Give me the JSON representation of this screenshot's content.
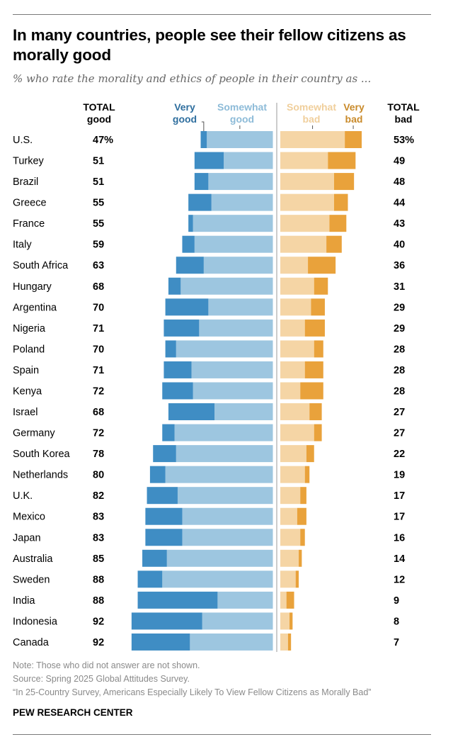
{
  "title": "In many countries, people see their fellow citizens as morally good",
  "subtitle": "% who rate the morality and ethics of people in their country as ...",
  "headers": {
    "total_good": [
      "TOTAL",
      "good"
    ],
    "very_good": [
      "Very",
      "good"
    ],
    "somewhat_good": [
      "Somewhat",
      "good"
    ],
    "somewhat_bad": [
      "Somewhat",
      "bad"
    ],
    "very_bad": [
      "Very",
      "bad"
    ],
    "total_bad": [
      "TOTAL",
      "bad"
    ]
  },
  "colors": {
    "very_good": "#3f8dc4",
    "somewhat_good": "#9dc6e0",
    "somewhat_bad": "#f5d5a5",
    "very_bad": "#e9a23b",
    "very_good_label": "#2e6e9e",
    "somewhat_good_label": "#8dbbd8",
    "somewhat_bad_label": "#f0cf9c",
    "very_bad_label": "#c98a2a"
  },
  "chart_data": {
    "type": "bar",
    "orientation": "horizontal-diverging-stacked",
    "categories": [
      "U.S.",
      "Turkey",
      "Brazil",
      "Greece",
      "France",
      "Italy",
      "South Africa",
      "Hungary",
      "Argentina",
      "Nigeria",
      "Poland",
      "Spain",
      "Kenya",
      "Israel",
      "Germany",
      "South Korea",
      "Netherlands",
      "U.K.",
      "Mexico",
      "Japan",
      "Australia",
      "Sweden",
      "India",
      "Indonesia",
      "Canada"
    ],
    "series": [
      {
        "name": "Very good",
        "values": [
          4,
          19,
          9,
          15,
          3,
          8,
          18,
          8,
          28,
          23,
          7,
          18,
          20,
          30,
          8,
          15,
          10,
          20,
          24,
          24,
          16,
          16,
          52,
          46,
          38
        ]
      },
      {
        "name": "Somewhat good",
        "values": [
          43,
          32,
          42,
          40,
          52,
          51,
          45,
          60,
          42,
          48,
          63,
          53,
          52,
          38,
          64,
          63,
          70,
          62,
          59,
          59,
          69,
          72,
          36,
          46,
          54
        ]
      },
      {
        "name": "Somewhat bad",
        "values": [
          42,
          31,
          35,
          35,
          32,
          30,
          18,
          22,
          20,
          16,
          22,
          16,
          13,
          19,
          22,
          17,
          16,
          13,
          11,
          13,
          12,
          10,
          4,
          6,
          5
        ]
      },
      {
        "name": "Very bad",
        "values": [
          11,
          18,
          13,
          9,
          11,
          10,
          18,
          9,
          9,
          13,
          6,
          12,
          15,
          8,
          5,
          5,
          3,
          4,
          6,
          3,
          2,
          2,
          5,
          2,
          2
        ]
      }
    ],
    "total_good_labels": [
      "47%",
      "51",
      "51",
      "55",
      "55",
      "59",
      "63",
      "68",
      "70",
      "71",
      "70",
      "71",
      "72",
      "68",
      "72",
      "78",
      "80",
      "82",
      "83",
      "83",
      "85",
      "88",
      "88",
      "92",
      "92"
    ],
    "total_bad_labels": [
      "53%",
      "49",
      "48",
      "44",
      "43",
      "40",
      "36",
      "31",
      "29",
      "29",
      "28",
      "28",
      "28",
      "27",
      "27",
      "22",
      "19",
      "17",
      "17",
      "16",
      "14",
      "12",
      "9",
      "8",
      "7"
    ],
    "grid": false,
    "legend": "top"
  },
  "notes": [
    "Note: Those who did not answer are not shown.",
    "Source: Spring 2025 Global Attitudes Survey.",
    "“In 25-Country Survey, Americans Especially Likely To View Fellow Citizens as Morally Bad”"
  ],
  "brand": "PEW RESEARCH CENTER"
}
